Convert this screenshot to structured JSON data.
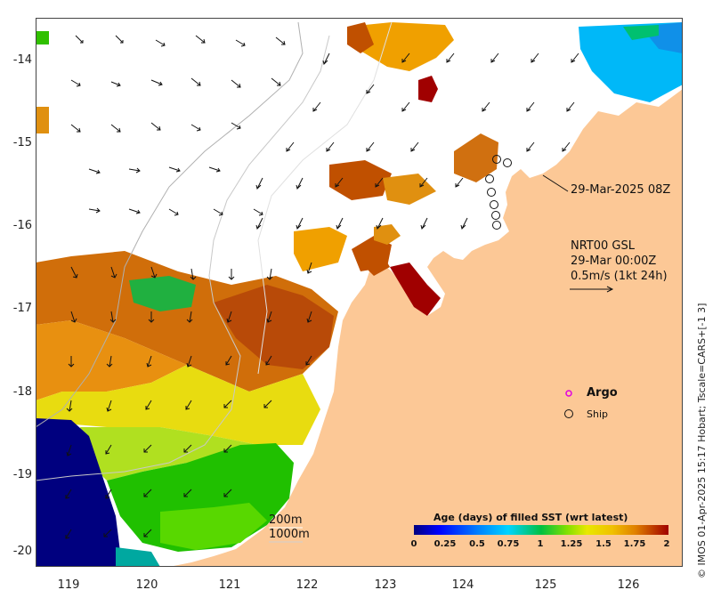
{
  "map": {
    "lat_ticks": [
      "-14",
      "-15",
      "-16",
      "-17",
      "-18",
      "-19",
      "-20"
    ],
    "lon_ticks": [
      "119",
      "120",
      "121",
      "122",
      "123",
      "124",
      "125",
      "126"
    ],
    "credit": "© IMOS 01-Apr-2025 15:17 Hobart; Tscale=CARS+[-1 3]",
    "ship_track_label": "29-Mar-2025 08Z",
    "product": {
      "line1": "NRT00 GSL",
      "line2": "29-Mar 00:00Z",
      "line3": "0.5m/s (1kt 24h)"
    },
    "depth_contours": {
      "line1": "200m",
      "line2": "1000m"
    },
    "markers": {
      "argo": "Argo",
      "ship": "Ship"
    },
    "colors": {
      "land": "#fcc896",
      "argo": "#e000e0",
      "ramp": [
        "#00007f",
        "#0000ff",
        "#007fff",
        "#00d4ff",
        "#00c87f",
        "#00c000",
        "#80e000",
        "#e8e800",
        "#f0c000",
        "#e08000",
        "#c05000",
        "#a00000"
      ]
    }
  },
  "colorbar": {
    "title": "Age (days) of filled SST (wrt latest)",
    "min": 0,
    "max": 2,
    "ticks": [
      "0",
      "0.25",
      "0.5",
      "0.75",
      "1",
      "1.25",
      "1.5",
      "1.75",
      "2"
    ]
  }
}
